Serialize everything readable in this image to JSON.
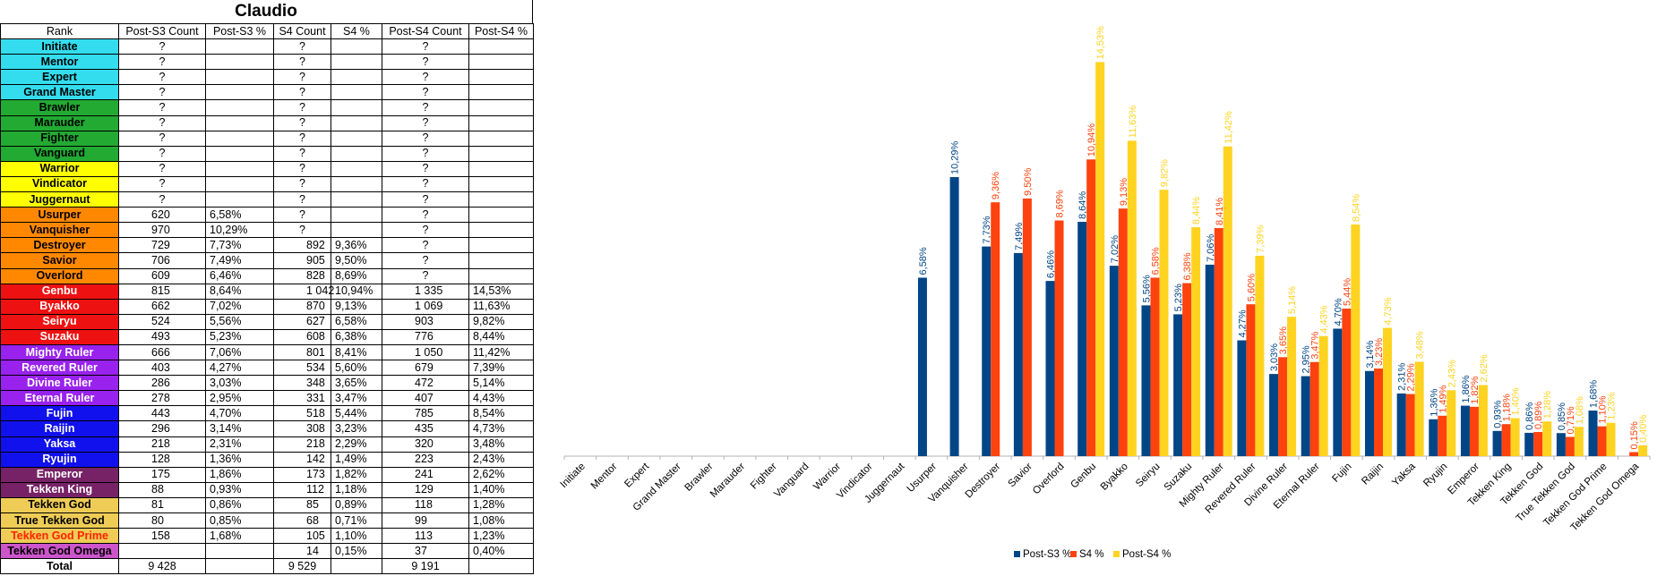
{
  "sheet": {
    "title": "Claudio",
    "headers": [
      "Rank",
      "Post-S3 Count",
      "Post-S3 %",
      "S4 Count",
      "S4 %",
      "Post-S4 Count",
      "Post-S4 %"
    ],
    "rows": [
      {
        "rank": "Initiate",
        "bg": "#33ddee",
        "fg": "#000000",
        "c1": "?",
        "p1": "",
        "c2": "?",
        "p2": "",
        "c3": "?",
        "p3": ""
      },
      {
        "rank": "Mentor",
        "bg": "#33ddee",
        "fg": "#000000",
        "c1": "?",
        "p1": "",
        "c2": "?",
        "p2": "",
        "c3": "?",
        "p3": ""
      },
      {
        "rank": "Expert",
        "bg": "#33ddee",
        "fg": "#000000",
        "c1": "?",
        "p1": "",
        "c2": "?",
        "p2": "",
        "c3": "?",
        "p3": ""
      },
      {
        "rank": "Grand Master",
        "bg": "#33ddee",
        "fg": "#000000",
        "c1": "?",
        "p1": "",
        "c2": "?",
        "p2": "",
        "c3": "?",
        "p3": ""
      },
      {
        "rank": "Brawler",
        "bg": "#22aa33",
        "fg": "#000000",
        "c1": "?",
        "p1": "",
        "c2": "?",
        "p2": "",
        "c3": "?",
        "p3": ""
      },
      {
        "rank": "Marauder",
        "bg": "#22aa33",
        "fg": "#000000",
        "c1": "?",
        "p1": "",
        "c2": "?",
        "p2": "",
        "c3": "?",
        "p3": ""
      },
      {
        "rank": "Fighter",
        "bg": "#22aa33",
        "fg": "#000000",
        "c1": "?",
        "p1": "",
        "c2": "?",
        "p2": "",
        "c3": "?",
        "p3": ""
      },
      {
        "rank": "Vanguard",
        "bg": "#22aa33",
        "fg": "#000000",
        "c1": "?",
        "p1": "",
        "c2": "?",
        "p2": "",
        "c3": "?",
        "p3": ""
      },
      {
        "rank": "Warrior",
        "bg": "#ffff00",
        "fg": "#000000",
        "c1": "?",
        "p1": "",
        "c2": "?",
        "p2": "",
        "c3": "?",
        "p3": ""
      },
      {
        "rank": "Vindicator",
        "bg": "#ffff00",
        "fg": "#000000",
        "c1": "?",
        "p1": "",
        "c2": "?",
        "p2": "",
        "c3": "?",
        "p3": ""
      },
      {
        "rank": "Juggernaut",
        "bg": "#ffff00",
        "fg": "#000000",
        "c1": "?",
        "p1": "",
        "c2": "?",
        "p2": "",
        "c3": "?",
        "p3": ""
      },
      {
        "rank": "Usurper",
        "bg": "#ff8800",
        "fg": "#000000",
        "c1": "620",
        "p1": "6,58%",
        "c2": "?",
        "p2": "",
        "c3": "?",
        "p3": ""
      },
      {
        "rank": "Vanquisher",
        "bg": "#ff8800",
        "fg": "#000000",
        "c1": "970",
        "p1": "10,29%",
        "c2": "?",
        "p2": "",
        "c3": "?",
        "p3": ""
      },
      {
        "rank": "Destroyer",
        "bg": "#ff8800",
        "fg": "#000000",
        "c1": "729",
        "p1": "7,73%",
        "c2": "892",
        "p2": "9,36%",
        "c3": "?",
        "p3": ""
      },
      {
        "rank": "Savior",
        "bg": "#ff8800",
        "fg": "#000000",
        "c1": "706",
        "p1": "7,49%",
        "c2": "905",
        "p2": "9,50%",
        "c3": "?",
        "p3": ""
      },
      {
        "rank": "Overlord",
        "bg": "#ff8800",
        "fg": "#000000",
        "c1": "609",
        "p1": "6,46%",
        "c2": "828",
        "p2": "8,69%",
        "c3": "?",
        "p3": ""
      },
      {
        "rank": "Genbu",
        "bg": "#ee1111",
        "fg": "#ffffff",
        "c1": "815",
        "p1": "8,64%",
        "c2": "1 042",
        "p2": "10,94%",
        "c3": "1 335",
        "p3": "14,53%"
      },
      {
        "rank": "Byakko",
        "bg": "#ee1111",
        "fg": "#ffffff",
        "c1": "662",
        "p1": "7,02%",
        "c2": "870",
        "p2": "9,13%",
        "c3": "1 069",
        "p3": "11,63%"
      },
      {
        "rank": "Seiryu",
        "bg": "#ee1111",
        "fg": "#ffffff",
        "c1": "524",
        "p1": "5,56%",
        "c2": "627",
        "p2": "6,58%",
        "c3": "903",
        "p3": "9,82%"
      },
      {
        "rank": "Suzaku",
        "bg": "#ee1111",
        "fg": "#ffffff",
        "c1": "493",
        "p1": "5,23%",
        "c2": "608",
        "p2": "6,38%",
        "c3": "776",
        "p3": "8,44%"
      },
      {
        "rank": "Mighty Ruler",
        "bg": "#9922ee",
        "fg": "#ffffff",
        "c1": "666",
        "p1": "7,06%",
        "c2": "801",
        "p2": "8,41%",
        "c3": "1 050",
        "p3": "11,42%"
      },
      {
        "rank": "Revered Ruler",
        "bg": "#9922ee",
        "fg": "#ffffff",
        "c1": "403",
        "p1": "4,27%",
        "c2": "534",
        "p2": "5,60%",
        "c3": "679",
        "p3": "7,39%"
      },
      {
        "rank": "Divine Ruler",
        "bg": "#9922ee",
        "fg": "#ffffff",
        "c1": "286",
        "p1": "3,03%",
        "c2": "348",
        "p2": "3,65%",
        "c3": "472",
        "p3": "5,14%"
      },
      {
        "rank": "Eternal Ruler",
        "bg": "#9922ee",
        "fg": "#ffffff",
        "c1": "278",
        "p1": "2,95%",
        "c2": "331",
        "p2": "3,47%",
        "c3": "407",
        "p3": "4,43%"
      },
      {
        "rank": "Fujin",
        "bg": "#1111ee",
        "fg": "#ffffff",
        "c1": "443",
        "p1": "4,70%",
        "c2": "518",
        "p2": "5,44%",
        "c3": "785",
        "p3": "8,54%"
      },
      {
        "rank": "Raijin",
        "bg": "#1111ee",
        "fg": "#ffffff",
        "c1": "296",
        "p1": "3,14%",
        "c2": "308",
        "p2": "3,23%",
        "c3": "435",
        "p3": "4,73%"
      },
      {
        "rank": "Yaksa",
        "bg": "#1111ee",
        "fg": "#ffffff",
        "c1": "218",
        "p1": "2,31%",
        "c2": "218",
        "p2": "2,29%",
        "c3": "320",
        "p3": "3,48%"
      },
      {
        "rank": "Ryujin",
        "bg": "#1111ee",
        "fg": "#ffffff",
        "c1": "128",
        "p1": "1,36%",
        "c2": "142",
        "p2": "1,49%",
        "c3": "223",
        "p3": "2,43%"
      },
      {
        "rank": "Emperor",
        "bg": "#772266",
        "fg": "#ffffff",
        "c1": "175",
        "p1": "1,86%",
        "c2": "173",
        "p2": "1,82%",
        "c3": "241",
        "p3": "2,62%"
      },
      {
        "rank": "Tekken King",
        "bg": "#772266",
        "fg": "#ffffff",
        "c1": "88",
        "p1": "0,93%",
        "c2": "112",
        "p2": "1,18%",
        "c3": "129",
        "p3": "1,40%"
      },
      {
        "rank": "Tekken God",
        "bg": "#eecc55",
        "fg": "#000000",
        "c1": "81",
        "p1": "0,86%",
        "c2": "85",
        "p2": "0,89%",
        "c3": "118",
        "p3": "1,28%"
      },
      {
        "rank": "True Tekken God",
        "bg": "#eecc55",
        "fg": "#000000",
        "c1": "80",
        "p1": "0,85%",
        "c2": "68",
        "p2": "0,71%",
        "c3": "99",
        "p3": "1,08%"
      },
      {
        "rank": "Tekken God Prime",
        "bg": "#eecc55",
        "fg": "#ff2200",
        "c1": "158",
        "p1": "1,68%",
        "c2": "105",
        "p2": "1,10%",
        "c3": "113",
        "p3": "1,23%"
      },
      {
        "rank": "Tekken God Omega",
        "bg": "#cc55cc",
        "fg": "#000000",
        "c1": "",
        "p1": "",
        "c2": "14",
        "p2": "0,15%",
        "c3": "37",
        "p3": "0,40%"
      }
    ],
    "total": {
      "rank": "Total",
      "c1": "9 428",
      "p1": "",
      "c2": "9 529",
      "p2": "",
      "c3": "9 191",
      "p3": ""
    }
  },
  "chart_data": {
    "type": "bar",
    "categories": [
      "Initiate",
      "Mentor",
      "Expert",
      "Grand Master",
      "Brawler",
      "Marauder",
      "Fighter",
      "Vanguard",
      "Warrior",
      "Vindicator",
      "Juggernaut",
      "Usurper",
      "Vanquisher",
      "Destroyer",
      "Savior",
      "Overlord",
      "Genbu",
      "Byakko",
      "Seiryu",
      "Suzaku",
      "Mighty Ruler",
      "Revered Ruler",
      "Divine Ruler",
      "Eternal Ruler",
      "Fujin",
      "Raijin",
      "Yaksa",
      "Ryujin",
      "Emperor",
      "Tekken King",
      "Tekken God",
      "True Tekken God",
      "Tekken God Prime",
      "Tekken God Omega"
    ],
    "series": [
      {
        "name": "Post-S3 %",
        "color": "#004586",
        "values": [
          null,
          null,
          null,
          null,
          null,
          null,
          null,
          null,
          null,
          null,
          null,
          6.58,
          10.29,
          7.73,
          7.49,
          6.46,
          8.64,
          7.02,
          5.56,
          5.23,
          7.06,
          4.27,
          3.03,
          2.95,
          4.7,
          3.14,
          2.31,
          1.36,
          1.86,
          0.93,
          0.86,
          0.85,
          1.68,
          null
        ],
        "labels": [
          "",
          "",
          "",
          "",
          "",
          "",
          "",
          "",
          "",
          "",
          "",
          "6,58%",
          "10,29%",
          "7,73%",
          "7,49%",
          "6,46%",
          "8,64%",
          "7,02%",
          "5,56%",
          "5,23%",
          "7,06%",
          "4,27%",
          "3,03%",
          "2,95%",
          "4,70%",
          "3,14%",
          "2,31%",
          "1,36%",
          "1,86%",
          "0,93%",
          "0,86%",
          "0,85%",
          "1,68%",
          ""
        ]
      },
      {
        "name": "S4 %",
        "color": "#ff420e",
        "values": [
          null,
          null,
          null,
          null,
          null,
          null,
          null,
          null,
          null,
          null,
          null,
          null,
          null,
          9.36,
          9.5,
          8.69,
          10.94,
          9.13,
          6.58,
          6.38,
          8.41,
          5.6,
          3.65,
          3.47,
          5.44,
          3.23,
          2.29,
          1.49,
          1.82,
          1.18,
          0.89,
          0.71,
          1.1,
          0.15
        ],
        "labels": [
          "",
          "",
          "",
          "",
          "",
          "",
          "",
          "",
          "",
          "",
          "",
          "",
          "",
          "9,36%",
          "9,50%",
          "8,69%",
          "10,94%",
          "9,13%",
          "6,58%",
          "6,38%",
          "8,41%",
          "5,60%",
          "3,65%",
          "3,47%",
          "5,44%",
          "3,23%",
          "2,29%",
          "1,49%",
          "1,82%",
          "1,18%",
          "0,89%",
          "0,71%",
          "1,10%",
          "0,15%"
        ]
      },
      {
        "name": "Post-S4 %",
        "color": "#ffd320",
        "values": [
          null,
          null,
          null,
          null,
          null,
          null,
          null,
          null,
          null,
          null,
          null,
          null,
          null,
          null,
          null,
          null,
          14.53,
          11.63,
          9.82,
          8.44,
          11.42,
          7.39,
          5.14,
          4.43,
          8.54,
          4.73,
          3.48,
          2.43,
          2.62,
          1.4,
          1.28,
          1.08,
          1.23,
          0.4
        ],
        "labels": [
          "",
          "",
          "",
          "",
          "",
          "",
          "",
          "",
          "",
          "",
          "",
          "",
          "",
          "",
          "",
          "",
          "14,53%",
          "11,63%",
          "9,82%",
          "8,44%",
          "11,42%",
          "7,39%",
          "5,14%",
          "4,43%",
          "8,54%",
          "4,73%",
          "3,48%",
          "2,43%",
          "2,62%",
          "1,40%",
          "1,28%",
          "1,08%",
          "1,23%",
          "0,40%"
        ]
      }
    ],
    "ylim": [
      0,
      15.5
    ],
    "legend": "bottom",
    "grid": false
  }
}
